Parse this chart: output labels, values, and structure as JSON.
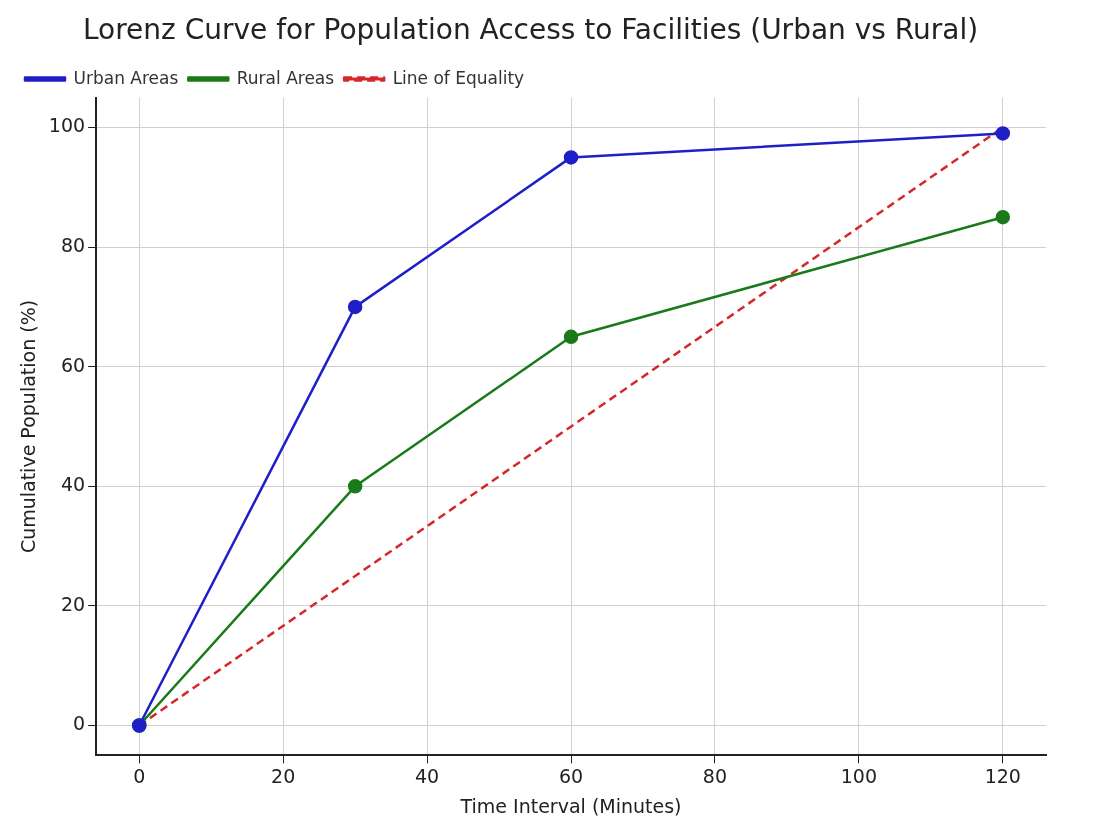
{
  "chart_data": {
    "type": "line",
    "title": "Lorenz Curve for Population Access to Facilities (Urban vs Rural)",
    "xlabel": "Time Interval (Minutes)",
    "ylabel": "Cumulative Population (%)",
    "series": [
      {
        "name": "Urban Areas",
        "color": "#1f1fc8",
        "x": [
          0,
          30,
          60,
          120
        ],
        "values": [
          0,
          70,
          95,
          99
        ]
      },
      {
        "name": "Rural Areas",
        "color": "#1a7a1a",
        "x": [
          0,
          30,
          60,
          120
        ],
        "values": [
          0,
          40,
          65,
          85
        ]
      },
      {
        "name": "Line of Equality",
        "color": "#d62728",
        "x": [
          0,
          120
        ],
        "values": [
          0,
          100
        ],
        "line_style": "dashed",
        "marker": "none"
      }
    ],
    "xlim": [
      -6,
      126
    ],
    "xticks": [
      0,
      20,
      40,
      60,
      80,
      100,
      120
    ],
    "ylim": [
      -5,
      105
    ],
    "yticks": [
      0,
      20,
      40,
      60,
      80,
      100
    ],
    "grid": true,
    "legend": "top left",
    "marker": "circle",
    "line_style": "solid"
  }
}
